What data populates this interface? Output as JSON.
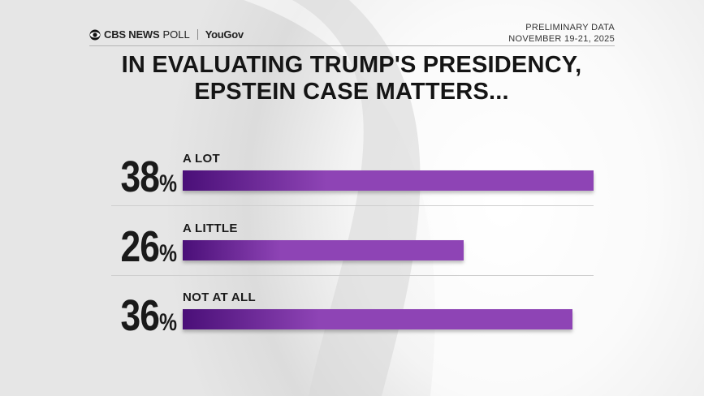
{
  "header": {
    "brand": "CBS NEWS",
    "brand_suffix": "POLL",
    "partner": "YouGov",
    "note": "PRELIMINARY DATA",
    "dates": "NOVEMBER 19-21, 2025"
  },
  "chart_data": {
    "type": "bar",
    "orientation": "horizontal",
    "title": "IN EVALUATING TRUMP'S PRESIDENCY, EPSTEIN CASE MATTERS...",
    "categories": [
      "A LOT",
      "A LITTLE",
      "NOT AT ALL"
    ],
    "values": [
      38,
      26,
      36
    ],
    "value_labels": [
      "38%",
      "26%",
      "36%"
    ],
    "color": "#8e44b5"
  }
}
